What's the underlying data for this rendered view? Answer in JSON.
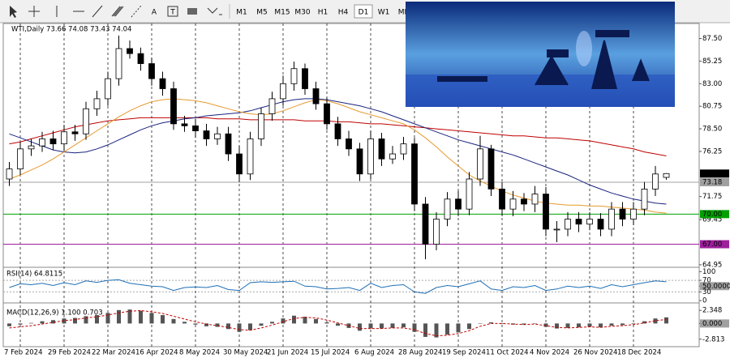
{
  "toolbar": {
    "text_tools": [
      "A",
      "T"
    ],
    "timeframes": [
      "M1",
      "M5",
      "M15",
      "M30",
      "H1",
      "H4",
      "D1",
      "W1",
      "MN"
    ],
    "selected_timeframe": "D1"
  },
  "chart_data": [
    {
      "type": "candlestick",
      "title": "WTI,Daily  73.66 74.08 73.43 74.04",
      "categories": [
        null,
        "7 Feb 2024",
        null,
        null,
        null,
        "29 Feb 2024",
        null,
        null,
        null,
        "22 Mar 2024",
        null,
        null,
        null,
        "16 Apr 2024",
        null,
        null,
        null,
        "8 May 2024",
        null,
        null,
        null,
        "30 May 2024",
        null,
        null,
        null,
        "21 Jun 2024",
        null,
        null,
        null,
        "15 Jul 2024",
        null,
        null,
        null,
        "6 Aug 2024",
        null,
        null,
        null,
        "28 Aug 2024",
        null,
        null,
        null,
        "19 Sep 2024",
        null,
        null,
        null,
        "11 Oct 2024",
        null,
        null,
        null,
        "4 Nov 2024",
        null,
        null,
        null,
        "26 Nov 2024",
        null,
        null,
        null,
        "18 Dec 2024",
        null,
        null,
        null
      ],
      "open": [
        73.5,
        74.5,
        76.5,
        76.8,
        77.5,
        77.0,
        78.2,
        78.0,
        80.5,
        81.5,
        83.5,
        86.5,
        86.0,
        85.0,
        83.5,
        82.5,
        79.0,
        78.8,
        78.3,
        77.5,
        78.0,
        76.0,
        74.0,
        77.5,
        80.0,
        81.5,
        83.0,
        84.5,
        82.5,
        81.0,
        79.0,
        77.5,
        76.5,
        74.0,
        77.5,
        75.5,
        76.0,
        77.0,
        71.0,
        67.0,
        69.5,
        71.5,
        70.5,
        73.5,
        76.5,
        72.5,
        70.5,
        71.5,
        71.0,
        72.0,
        68.5,
        68.5,
        69.5,
        69.0,
        69.5,
        68.5,
        70.5,
        69.5,
        70.5,
        72.5,
        73.66
      ],
      "high": [
        75.2,
        77.2,
        77.5,
        78.2,
        78.3,
        78.9,
        78.9,
        81.2,
        82.3,
        84.2,
        87.8,
        87.3,
        86.6,
        85.6,
        84.2,
        83.2,
        79.8,
        79.5,
        79.0,
        78.7,
        78.7,
        76.8,
        78.2,
        80.6,
        82.2,
        83.8,
        85.2,
        85.0,
        83.2,
        81.6,
        79.7,
        78.3,
        77.1,
        78.3,
        78.1,
        76.8,
        77.7,
        77.6,
        71.7,
        70.2,
        72.2,
        72.3,
        74.2,
        77.8,
        76.9,
        73.2,
        72.3,
        72.1,
        72.8,
        72.7,
        69.3,
        70.2,
        70.2,
        70.2,
        70.1,
        71.2,
        71.2,
        71.2,
        73.2,
        74.8,
        74.08
      ],
      "low": [
        72.8,
        73.9,
        75.8,
        76.2,
        76.4,
        76.3,
        77.3,
        77.4,
        79.8,
        80.8,
        82.8,
        85.5,
        84.3,
        82.8,
        81.8,
        78.4,
        78.2,
        77.6,
        76.8,
        76.9,
        75.3,
        73.2,
        73.4,
        76.8,
        79.3,
        80.8,
        82.3,
        81.9,
        80.4,
        78.4,
        76.8,
        75.8,
        73.3,
        73.5,
        74.8,
        75.0,
        75.4,
        70.3,
        65.5,
        66.4,
        68.8,
        69.8,
        69.9,
        72.8,
        71.8,
        69.8,
        69.8,
        70.3,
        70.2,
        67.8,
        67.2,
        67.8,
        68.2,
        68.4,
        67.8,
        67.8,
        68.8,
        68.9,
        69.9,
        71.8,
        73.43
      ],
      "close": [
        74.5,
        76.5,
        76.8,
        77.5,
        77.0,
        78.2,
        78.0,
        80.5,
        81.5,
        83.5,
        86.5,
        86.0,
        85.0,
        83.5,
        82.5,
        79.0,
        78.8,
        78.3,
        77.5,
        78.0,
        76.0,
        74.0,
        77.5,
        80.0,
        81.5,
        83.0,
        84.5,
        82.5,
        81.0,
        79.0,
        77.5,
        76.5,
        74.0,
        77.5,
        75.5,
        76.0,
        77.0,
        71.0,
        67.0,
        69.5,
        71.5,
        70.5,
        73.5,
        76.5,
        72.5,
        70.5,
        71.5,
        71.0,
        72.0,
        68.5,
        68.5,
        69.5,
        69.0,
        69.5,
        68.5,
        70.5,
        69.5,
        70.5,
        72.5,
        74.0,
        74.04
      ],
      "moving_averages": [
        {
          "color": "#c00000",
          "values": [
            77.0,
            77.2,
            77.5,
            77.8,
            78.1,
            78.4,
            78.7,
            78.9,
            79.1,
            79.3,
            79.4,
            79.5,
            79.6,
            79.6,
            79.6,
            79.6,
            79.6,
            79.6,
            79.6,
            79.5,
            79.5,
            79.5,
            79.4,
            79.4,
            79.4,
            79.4,
            79.4,
            79.3,
            79.3,
            79.3,
            79.2,
            79.2,
            79.1,
            79.0,
            79.0,
            78.9,
            78.8,
            78.7,
            78.6,
            78.5,
            78.4,
            78.3,
            78.2,
            78.1,
            78.0,
            77.9,
            77.8,
            77.8,
            77.7,
            77.6,
            77.6,
            77.5,
            77.4,
            77.3,
            77.1,
            76.9,
            76.7,
            76.5,
            76.2,
            76.0,
            75.8
          ]
        },
        {
          "color": "#1a237e",
          "values": [
            78.0,
            77.6,
            77.2,
            76.8,
            76.4,
            76.2,
            76.1,
            76.2,
            76.5,
            76.9,
            77.4,
            77.9,
            78.4,
            78.8,
            79.1,
            79.3,
            79.5,
            79.6,
            79.8,
            79.9,
            80.0,
            80.1,
            80.3,
            80.6,
            80.9,
            81.2,
            81.4,
            81.5,
            81.5,
            81.4,
            81.2,
            81.0,
            80.8,
            80.5,
            80.2,
            79.8,
            79.4,
            79.0,
            78.6,
            78.2,
            77.8,
            77.4,
            77.1,
            76.8,
            76.5,
            76.2,
            75.9,
            75.5,
            75.1,
            74.7,
            74.3,
            73.9,
            73.4,
            72.9,
            72.5,
            72.1,
            71.8,
            71.5,
            71.3,
            71.1,
            71.0
          ]
        },
        {
          "color": "#e69a2e",
          "values": [
            73.5,
            73.9,
            74.4,
            74.9,
            75.5,
            76.2,
            76.9,
            77.6,
            78.3,
            79.0,
            79.7,
            80.3,
            80.8,
            81.2,
            81.4,
            81.5,
            81.4,
            81.3,
            81.1,
            80.8,
            80.5,
            80.2,
            80.0,
            79.9,
            80.0,
            80.3,
            80.7,
            81.1,
            81.4,
            81.3,
            81.0,
            80.6,
            80.2,
            79.9,
            79.6,
            79.3,
            79.0,
            78.4,
            77.6,
            76.7,
            75.7,
            74.8,
            73.9,
            73.3,
            72.8,
            72.3,
            71.9,
            71.6,
            71.3,
            71.1,
            71.0,
            70.9,
            70.9,
            70.8,
            70.8,
            70.7,
            70.6,
            70.5,
            70.4,
            70.2,
            70.1
          ]
        }
      ],
      "ylim": [
        64.7,
        89.0
      ],
      "yticks": [
        {
          "value": 87.5,
          "label": "87.50"
        },
        85.25,
        {
          "value": 83.0,
          "label": "83.00"
        },
        80.75,
        {
          "value": 78.5,
          "label": "78.50"
        },
        76.25,
        71.75,
        69.45,
        64.95
      ],
      "levels": [
        {
          "value": 73.18,
          "label": "73.18",
          "color": "#a0a0a0"
        },
        {
          "value": 70.0,
          "label": "70.00",
          "color": "#00a000"
        },
        {
          "value": 67.0,
          "label": "67.00",
          "color": "#9c1f9c"
        }
      ],
      "last_price": {
        "value": 74.04,
        "label": "74.04"
      },
      "grid": true
    },
    {
      "type": "line",
      "title": "RSI(14) 64.8115",
      "color": "#1e6fb5",
      "values": [
        45,
        58,
        55,
        60,
        52,
        62,
        55,
        68,
        63,
        70,
        72,
        60,
        55,
        50,
        48,
        35,
        45,
        47,
        45,
        52,
        38,
        35,
        62,
        65,
        63,
        65,
        67,
        50,
        48,
        40,
        42,
        45,
        35,
        60,
        45,
        52,
        55,
        30,
        25,
        45,
        52,
        48,
        58,
        68,
        40,
        35,
        48,
        45,
        52,
        35,
        40,
        50,
        45,
        50,
        42,
        55,
        48,
        55,
        62,
        68,
        65
      ],
      "ylim": [
        -8,
        115
      ],
      "yticks": [
        100,
        70,
        {
          "value": 50,
          "label": "50.0000"
        },
        30,
        0
      ]
    },
    {
      "type": "macd",
      "title": "MACD(12,26,9) 1.100 0.703",
      "color": "#555555",
      "signal_color": "#c00000",
      "values": [
        -0.5,
        -0.2,
        0.1,
        0.4,
        0.6,
        0.9,
        1.0,
        1.3,
        1.5,
        1.9,
        2.4,
        2.5,
        2.3,
        1.9,
        1.5,
        0.8,
        0.3,
        -0.2,
        -0.5,
        -0.6,
        -1.0,
        -1.5,
        -1.2,
        -0.4,
        0.3,
        0.9,
        1.4,
        1.2,
        0.8,
        0.2,
        -0.4,
        -0.8,
        -1.3,
        -0.9,
        -0.9,
        -0.8,
        -0.7,
        -1.5,
        -2.4,
        -2.5,
        -2.0,
        -1.6,
        -1.0,
        0.0,
        0.2,
        -0.1,
        -0.2,
        -0.2,
        0.0,
        -0.6,
        -0.9,
        -0.8,
        -0.7,
        -0.6,
        -0.7,
        -0.4,
        -0.3,
        -0.1,
        0.4,
        0.9,
        1.1
      ],
      "signal": [
        -0.8,
        -0.6,
        -0.4,
        -0.1,
        0.2,
        0.5,
        0.7,
        1.0,
        1.2,
        1.5,
        1.9,
        2.2,
        2.3,
        2.1,
        1.8,
        1.3,
        0.8,
        0.3,
        -0.1,
        -0.4,
        -0.7,
        -1.1,
        -1.2,
        -0.8,
        -0.3,
        0.3,
        0.9,
        1.1,
        1.0,
        0.6,
        0.1,
        -0.4,
        -0.9,
        -0.9,
        -0.9,
        -0.8,
        -0.8,
        -1.1,
        -1.8,
        -2.2,
        -2.1,
        -1.8,
        -1.3,
        -0.5,
        0.0,
        0.0,
        -0.1,
        -0.2,
        -0.1,
        -0.4,
        -0.7,
        -0.8,
        -0.7,
        -0.6,
        -0.7,
        -0.5,
        -0.4,
        -0.2,
        0.1,
        0.5,
        0.703
      ],
      "ylim": [
        -4.15,
        3.68
      ],
      "yticks": [
        {
          "value": 2.348,
          "label": "2.348"
        },
        {
          "value": 0,
          "label": "0.000"
        },
        {
          "value": -2.813,
          "label": "-2.813"
        }
      ]
    }
  ]
}
